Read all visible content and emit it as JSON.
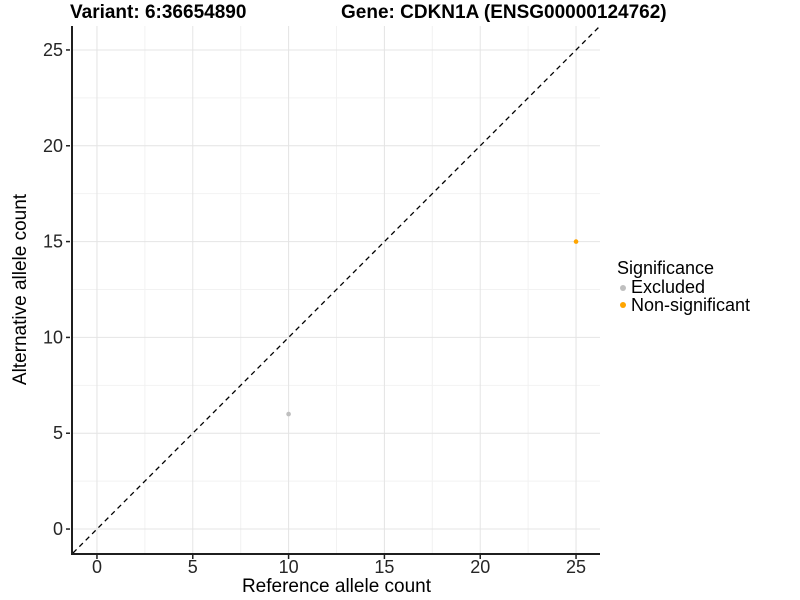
{
  "chart_data": {
    "type": "scatter",
    "titles": {
      "variant": "Variant: 6:36654890",
      "gene": "Gene: CDKN1A (ENSG00000124762)"
    },
    "xlabel": "Reference allele count",
    "ylabel": "Alternative allele count",
    "xlim": [
      -1.25,
      26.25
    ],
    "ylim": [
      -1.25,
      26.25
    ],
    "x_ticks": [
      0,
      5,
      10,
      15,
      20,
      25
    ],
    "y_ticks": [
      0,
      5,
      10,
      15,
      20,
      25
    ],
    "x_minor_ticks": [
      2.5,
      7.5,
      12.5,
      17.5,
      22.5
    ],
    "y_minor_ticks": [
      2.5,
      7.5,
      12.5,
      17.5,
      22.5
    ],
    "grid": "major+minor",
    "identity_line": {
      "style": "dashed",
      "color": "#000000",
      "from": -1.25,
      "to": 26.25
    },
    "legend": {
      "title": "Significance",
      "position": "right"
    },
    "series": [
      {
        "name": "Excluded",
        "color": "#BFBFBF",
        "points": [
          {
            "x": 10,
            "y": 6
          }
        ]
      },
      {
        "name": "Non-significant",
        "color": "#FFA500",
        "points": [
          {
            "x": 25,
            "y": 15
          }
        ]
      }
    ]
  },
  "colors": {
    "grid_major": "#E4E4E4",
    "grid_minor": "#F2F2F2",
    "axis_line": "#1F1F1F",
    "tick_label": "#262626"
  }
}
